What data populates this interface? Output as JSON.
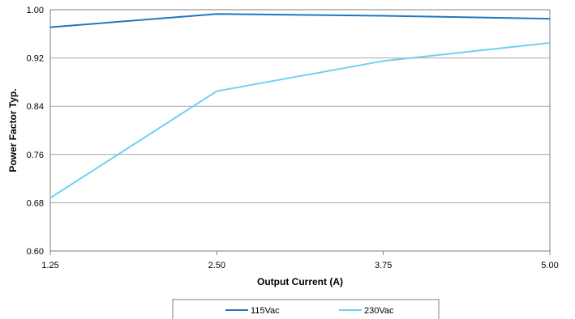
{
  "chart_data": {
    "type": "line",
    "x": [
      1.25,
      2.5,
      3.75,
      5.0
    ],
    "x_tick_labels": [
      "1.25",
      "2.50",
      "3.75",
      "5.00"
    ],
    "xlim": [
      1.25,
      5.0
    ],
    "y_tick_labels": [
      "0.60",
      "0.68",
      "0.76",
      "0.84",
      "0.92",
      "1.00"
    ],
    "y_ticks": [
      0.6,
      0.68,
      0.76,
      0.84,
      0.92,
      1.0
    ],
    "ylim": [
      0.6,
      1.0
    ],
    "xlabel": "Output Current (A)",
    "ylabel": "Power Factor Typ.",
    "grid": "horizontal",
    "legend_position": "bottom",
    "series": [
      {
        "name": "115Vac",
        "color": "#1f77c0",
        "values": [
          0.971,
          0.993,
          0.99,
          0.985
        ]
      },
      {
        "name": "230Vac",
        "color": "#6fd0f2",
        "values": [
          0.688,
          0.865,
          0.915,
          0.945
        ]
      }
    ]
  }
}
